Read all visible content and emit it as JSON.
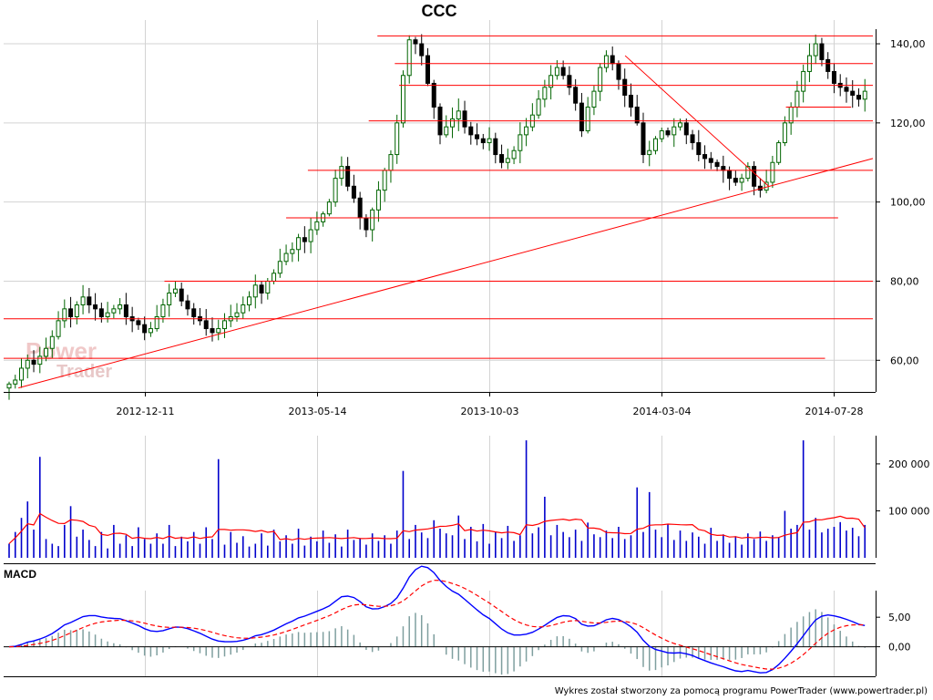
{
  "title": "CCC",
  "macd_label": "MACD",
  "credit": "Wykres został stworzony za pomocą programu PowerTrader (www.powertrader.pl)",
  "watermark": {
    "line1": "Power",
    "line2": "Trader"
  },
  "colors": {
    "price_up": "#006400",
    "price_down": "#000000",
    "lines": "#ff0000",
    "volume": "#0000cc",
    "volume_ma": "#ff0000",
    "macd": "#0000ff",
    "signal": "#ff0000",
    "histogram": "#7f9f9f",
    "grid": "#d3d3d3"
  },
  "chart_data": [
    {
      "type": "candlestick",
      "panel": "price",
      "title": "CCC",
      "x_tick_labels": [
        "2012-12-11",
        "2013-05-14",
        "2013-10-03",
        "2014-03-04",
        "2014-07-28"
      ],
      "y_tick_labels": [
        "60,00",
        "80,00",
        "100,00",
        "120,00",
        "140,00"
      ],
      "y_ticks": [
        60,
        80,
        100,
        120,
        140
      ],
      "ylim": [
        52,
        146
      ],
      "grid": true,
      "close_series": [
        54,
        55,
        58,
        60,
        59,
        61,
        63,
        66,
        70,
        73,
        71,
        74,
        76,
        74,
        73,
        71,
        72,
        73,
        74,
        71,
        70,
        69,
        67,
        68,
        71,
        74,
        77,
        78,
        75,
        73,
        71,
        70,
        68,
        67,
        68,
        70,
        71,
        72,
        74,
        76,
        79,
        77,
        80,
        82,
        85,
        87,
        88,
        91,
        90,
        93,
        95,
        97,
        100,
        106,
        109,
        104,
        101,
        96,
        93,
        98,
        103,
        108,
        112,
        120,
        132,
        141,
        140,
        137,
        130,
        124,
        117,
        119,
        121,
        123,
        119,
        117,
        116,
        115,
        116,
        112,
        110,
        111,
        113,
        117,
        119,
        122,
        126,
        129,
        132,
        134,
        132,
        129,
        125,
        118,
        124,
        128,
        134,
        137,
        135,
        131,
        127,
        124,
        120,
        112,
        113,
        116,
        118,
        117,
        119,
        120,
        117,
        115,
        112,
        111,
        110,
        109,
        108,
        106,
        105,
        106,
        109,
        104,
        103,
        105,
        110,
        115,
        120,
        124,
        128,
        133,
        137,
        140,
        136,
        133,
        130,
        129,
        128,
        127,
        126,
        128
      ],
      "horizontal_levels": [
        {
          "y": 142,
          "x_from": 0.43,
          "x_to": 1.0
        },
        {
          "y": 135,
          "x_from": 0.45,
          "x_to": 1.0
        },
        {
          "y": 129.5,
          "x_from": 0.455,
          "x_to": 1.0
        },
        {
          "y": 124,
          "x_from": 0.9,
          "x_to": 0.975
        },
        {
          "y": 120.5,
          "x_from": 0.42,
          "x_to": 1.0
        },
        {
          "y": 108,
          "x_from": 0.35,
          "x_to": 1.0
        },
        {
          "y": 96,
          "x_from": 0.325,
          "x_to": 0.96
        },
        {
          "y": 80,
          "x_from": 0.185,
          "x_to": 1.0
        },
        {
          "y": 70.5,
          "x_from": 0.0,
          "x_to": 1.0
        },
        {
          "y": 60.5,
          "x_from": 0.0,
          "x_to": 0.945
        }
      ],
      "trend_lines": [
        {
          "x1": 0.017,
          "y1": 53,
          "x2": 1.0,
          "y2": 111
        },
        {
          "x1": 0.715,
          "y1": 137,
          "x2": 0.88,
          "y2": 104
        }
      ]
    },
    {
      "type": "bar",
      "panel": "volume",
      "y_tick_labels": [
        "100 000",
        "200 000"
      ],
      "y_ticks": [
        100000,
        200000
      ],
      "ylim": [
        0,
        260000
      ],
      "ma_window": 10,
      "values": [
        30000,
        55000,
        85000,
        120000,
        60000,
        215000,
        40000,
        30000,
        25000,
        70000,
        110000,
        45000,
        60000,
        38000,
        25000,
        55000,
        20000,
        70000,
        30000,
        48000,
        25000,
        65000,
        40000,
        30000,
        52000,
        30000,
        70000,
        25000,
        45000,
        35000,
        55000,
        30000,
        65000,
        40000,
        210000,
        28000,
        55000,
        32000,
        46000,
        24000,
        30000,
        52000,
        26000,
        60000,
        35000,
        48000,
        30000,
        62000,
        26000,
        45000,
        35000,
        58000,
        32000,
        50000,
        24000,
        60000,
        38000,
        42000,
        28000,
        52000,
        36000,
        48000,
        30000,
        58000,
        185000,
        40000,
        70000,
        54000,
        42000,
        80000,
        62000,
        52000,
        48000,
        90000,
        40000,
        66000,
        35000,
        72000,
        30000,
        56000,
        42000,
        68000,
        36000,
        48000,
        250000,
        52000,
        65000,
        130000,
        48000,
        70000,
        55000,
        44000,
        60000,
        36000,
        75000,
        50000,
        44000,
        58000,
        42000,
        66000,
        40000,
        48000,
        150000,
        55000,
        140000,
        60000,
        44000,
        72000,
        38000,
        58000,
        36000,
        54000,
        45000,
        30000,
        64000,
        36000,
        50000,
        32000,
        46000,
        28000,
        52000,
        40000,
        56000,
        36000,
        48000,
        44000,
        100000,
        62000,
        70000,
        250000,
        60000,
        85000,
        54000,
        62000,
        66000,
        76000,
        58000,
        64000,
        46000,
        70000
      ]
    },
    {
      "type": "line",
      "panel": "macd",
      "title": "MACD",
      "y_tick_labels": [
        "0,00",
        "5,00"
      ],
      "y_ticks": [
        0,
        5
      ],
      "ylim": [
        -5,
        9.5
      ],
      "fast": 12,
      "slow": 26,
      "signal": 9
    }
  ]
}
